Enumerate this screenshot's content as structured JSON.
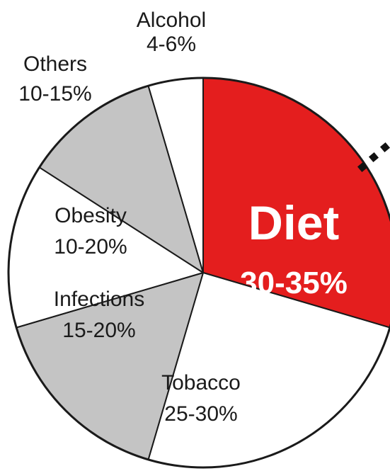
{
  "chart_data": {
    "type": "pie",
    "slices": [
      {
        "name": "Diet",
        "range": "30-35%",
        "value": 32.5,
        "color": "#e41e1e",
        "emphasis": true
      },
      {
        "name": "Tobacco",
        "range": "25-30%",
        "value": 27.5,
        "color": "#ffffff"
      },
      {
        "name": "Infections",
        "range": "15-20%",
        "value": 17.5,
        "color": "#c4c4c4"
      },
      {
        "name": "Obesity",
        "range": "10-20%",
        "value": 15,
        "color": "#ffffff"
      },
      {
        "name": "Others",
        "range": "10-15%",
        "value": 12.5,
        "color": "#c4c4c4"
      },
      {
        "name": "Alcohol",
        "range": "4-6%",
        "value": 5,
        "color": "#ffffff"
      }
    ],
    "start_angle_deg": 0,
    "direction": "clockwise",
    "legend": "none"
  }
}
